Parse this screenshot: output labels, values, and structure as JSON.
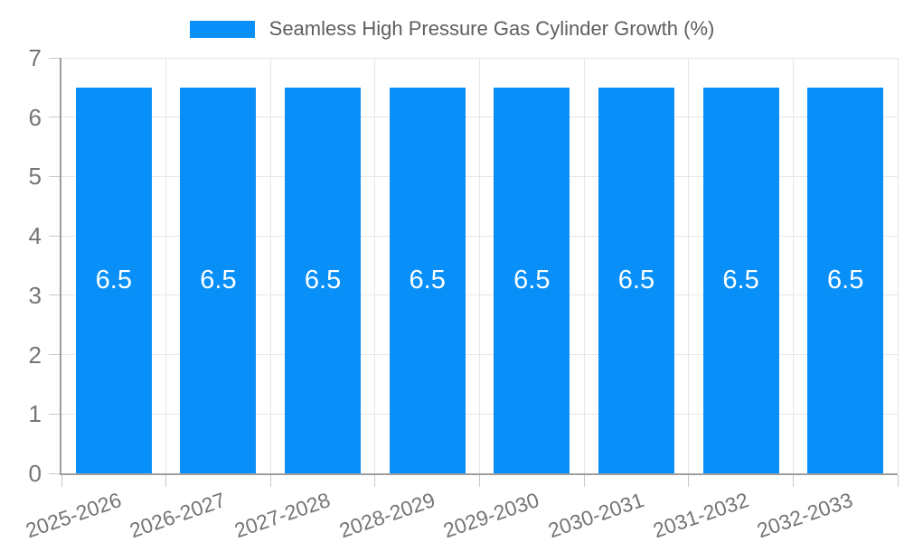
{
  "legend": {
    "label": "Seamless High Pressure Gas Cylinder Growth (%)"
  },
  "chart_data": {
    "type": "bar",
    "title": "Seamless High Pressure Gas Cylinder Growth (%)",
    "categories": [
      "2025-2026",
      "2026-2027",
      "2027-2028",
      "2028-2029",
      "2029-2030",
      "2030-2031",
      "2031-2032",
      "2032-2033"
    ],
    "series": [
      {
        "name": "Seamless High Pressure Gas Cylinder Growth (%)",
        "values": [
          6.5,
          6.5,
          6.5,
          6.5,
          6.5,
          6.5,
          6.5,
          6.5
        ]
      }
    ],
    "value_labels": [
      "6.5",
      "6.5",
      "6.5",
      "6.5",
      "6.5",
      "6.5",
      "6.5",
      "6.5"
    ],
    "xlabel": "",
    "ylabel": "",
    "ylim": [
      0,
      7
    ],
    "yticks": [
      0,
      1,
      2,
      3,
      4,
      5,
      6,
      7
    ],
    "ytick_labels": [
      "0",
      "1",
      "2",
      "3",
      "4",
      "5",
      "6",
      "7"
    ],
    "grid": true,
    "legend_position": "top",
    "x_tick_rotation_deg": -19,
    "colors": {
      "bar": "#0990F8",
      "tick_text": "#757575",
      "legend_text": "#5E5E5E",
      "grid": "#E6E6E6",
      "axis": "#9E9E9E",
      "bar_value_text": "#FFFFFF"
    }
  }
}
